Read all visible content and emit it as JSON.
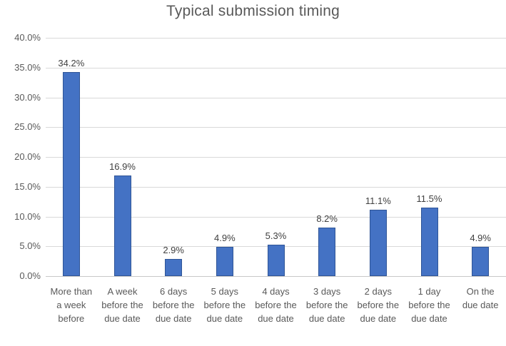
{
  "chart_data": {
    "type": "bar",
    "title": "Typical submission timing",
    "categories": [
      "More than a week before",
      "A week before the due date",
      "6 days before the due date",
      "5 days before the due date",
      "4 days before the due date",
      "3 days before the due date",
      "2 days before the due date",
      "1 day before the due date",
      "On the due date"
    ],
    "values": [
      34.2,
      16.9,
      2.9,
      4.9,
      5.3,
      8.2,
      11.1,
      11.5,
      4.9
    ],
    "data_labels": [
      "34.2%",
      "16.9%",
      "2.9%",
      "4.9%",
      "5.3%",
      "8.2%",
      "11.1%",
      "11.5%",
      "4.9%"
    ],
    "y_ticks": [
      {
        "value": 0,
        "label": "0.0%"
      },
      {
        "value": 5,
        "label": "5.0%"
      },
      {
        "value": 10,
        "label": "10.0%"
      },
      {
        "value": 15,
        "label": "15.0%"
      },
      {
        "value": 20,
        "label": "20.0%"
      },
      {
        "value": 25,
        "label": "25.0%"
      },
      {
        "value": 30,
        "label": "30.0%"
      },
      {
        "value": 35,
        "label": "35.0%"
      },
      {
        "value": 40,
        "label": "40.0%"
      }
    ],
    "ylim": [
      0,
      40
    ],
    "xlabel": "",
    "ylabel": "",
    "grid": true,
    "legend_position": "none",
    "colors": {
      "bar_fill": "#4472C4",
      "bar_border": "#2F5597",
      "gridline": "#D9D9D9",
      "axis_line": "#C8C8C8",
      "title_text": "#595959",
      "axis_text": "#595959",
      "data_label_text": "#404040",
      "background": "#FFFFFF"
    }
  }
}
